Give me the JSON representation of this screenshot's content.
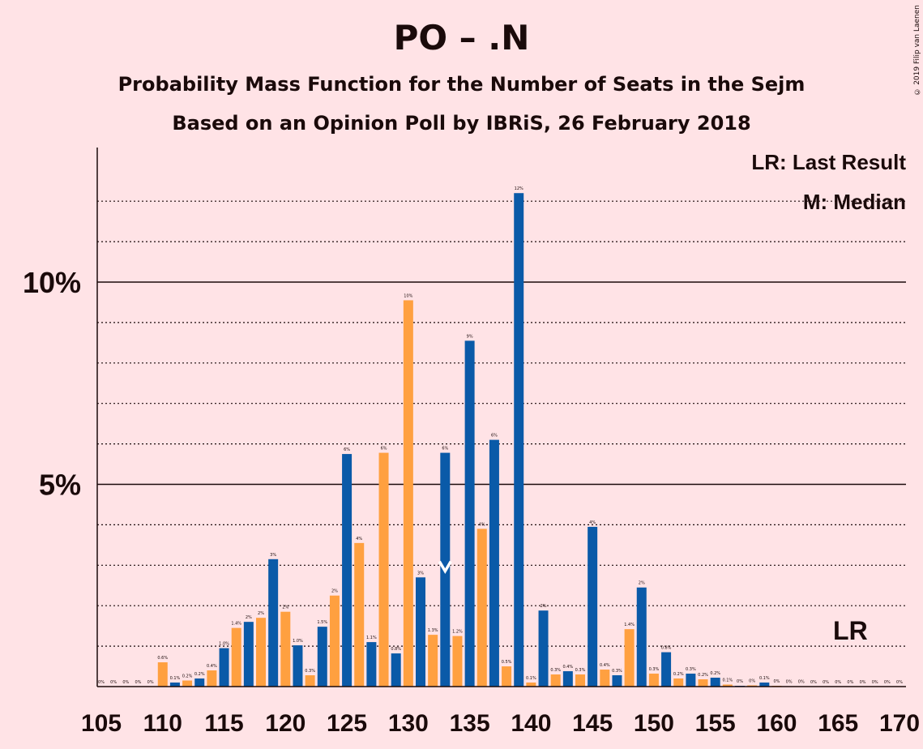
{
  "header": {
    "title": "PO – .N",
    "subtitle1": "Probability Mass Function for the Number of Seats in the Sejm",
    "subtitle2": "Based on an Opinion Poll by IBRiS, 26 February 2018",
    "copyright": "© 2019 Filip van Laenen"
  },
  "legend": {
    "last_result": "LR: Last Result",
    "median": "M: Median"
  },
  "markers": {
    "last_result_label": "LR",
    "last_result_seat": 166,
    "median_label": "M",
    "median_seat": 133
  },
  "colors": {
    "blue": "#0a5aa8",
    "orange": "#ffa040",
    "background": "#ffe3e6"
  },
  "chart_data": {
    "type": "bar",
    "x": [
      105,
      106,
      107,
      108,
      109,
      110,
      111,
      112,
      113,
      114,
      115,
      116,
      117,
      118,
      119,
      120,
      121,
      122,
      123,
      124,
      125,
      126,
      127,
      128,
      129,
      130,
      131,
      132,
      133,
      134,
      135,
      136,
      137,
      138,
      139,
      140,
      141,
      142,
      143,
      144,
      145,
      146,
      147,
      148,
      149,
      150,
      151,
      152,
      153,
      154,
      155,
      156,
      157,
      158,
      159,
      160,
      161,
      162,
      163,
      164,
      165,
      166,
      167,
      168,
      169,
      170
    ],
    "values": [
      0,
      0,
      0,
      0,
      0,
      0.6,
      0.1,
      0.15,
      0.2,
      0.4,
      0.95,
      1.45,
      1.6,
      1.7,
      3.15,
      1.85,
      1.02,
      0.28,
      1.48,
      2.25,
      5.75,
      3.55,
      1.1,
      5.78,
      0.82,
      9.55,
      2.7,
      1.28,
      5.78,
      1.25,
      8.55,
      3.9,
      6.1,
      0.5,
      12.2,
      0.1,
      1.88,
      0.3,
      0.38,
      0.3,
      3.95,
      0.42,
      0.28,
      1.42,
      2.45,
      0.32,
      0.85,
      0.2,
      0.32,
      0.18,
      0.22,
      0.05,
      0.02,
      0.03,
      0.1,
      0.02,
      0.01,
      0.01,
      0,
      0,
      0,
      0,
      0,
      0,
      0,
      0
    ],
    "labels": [
      "0%",
      "0%",
      "0%",
      "0%",
      "0%",
      "0.6%",
      "0.1%",
      "0.2%",
      "0.2%",
      "0.4%",
      "1.0%",
      "1.4%",
      "2%",
      "2%",
      "3%",
      "2%",
      "1.0%",
      "0.3%",
      "1.5%",
      "2%",
      "6%",
      "4%",
      "1.1%",
      "6%",
      "0.8%",
      "10%",
      "3%",
      "1.3%",
      "6%",
      "1.2%",
      "9%",
      "4%",
      "6%",
      "0.5%",
      "12%",
      "0.1%",
      "2%",
      "0.3%",
      "0.4%",
      "0.3%",
      "4%",
      "0.4%",
      "0.3%",
      "1.4%",
      "2%",
      "0.3%",
      "0.8%",
      "0.2%",
      "0.3%",
      "0.2%",
      "0.2%",
      "0.1%",
      "0%",
      "0%",
      "0.1%",
      "0%",
      "0%",
      "0%",
      "0%",
      "0%",
      "0%",
      "0%",
      "0%",
      "0%",
      "0%",
      "0%"
    ],
    "xlabel": "",
    "ylabel": "",
    "ylim": [
      0,
      13.3
    ],
    "xticks": [
      105,
      110,
      115,
      120,
      125,
      130,
      135,
      140,
      145,
      150,
      155,
      160,
      165,
      170
    ],
    "yticks": [
      {
        "value": 5,
        "label": "5%"
      },
      {
        "value": 10,
        "label": "10%"
      }
    ],
    "minor_gridlines": [
      1,
      2,
      3,
      4,
      6,
      7,
      8,
      9,
      11,
      12
    ],
    "bar_colors": "blue for odd seats, orange for even seats"
  }
}
